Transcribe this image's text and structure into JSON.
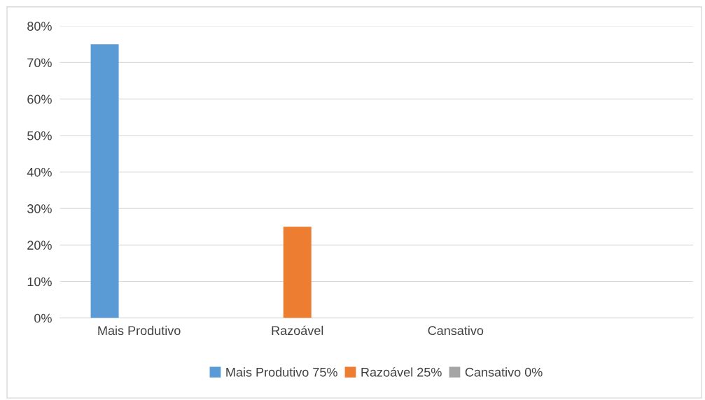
{
  "chart_data": {
    "type": "bar",
    "categories": [
      "Mais Produtivo",
      "Razoável",
      "Cansativo",
      null
    ],
    "series": [
      {
        "name": "Mais Produtivo 75%",
        "color": "#5b9bd5",
        "values": [
          75,
          null,
          null,
          null
        ]
      },
      {
        "name": "Razoável 25%",
        "color": "#ed7d31",
        "values": [
          null,
          25,
          null,
          null
        ]
      },
      {
        "name": "Cansativo 0%",
        "color": "#a5a5a5",
        "values": [
          null,
          null,
          0,
          null
        ]
      }
    ],
    "ylim": [
      0,
      80
    ],
    "yticks": [
      {
        "value": 0,
        "label": "0%"
      },
      {
        "value": 10,
        "label": "10%"
      },
      {
        "value": 20,
        "label": "20%"
      },
      {
        "value": 30,
        "label": "30%"
      },
      {
        "value": 40,
        "label": "40%"
      },
      {
        "value": 50,
        "label": "50%"
      },
      {
        "value": 60,
        "label": "60%"
      },
      {
        "value": 70,
        "label": "70%"
      },
      {
        "value": 80,
        "label": "80%"
      }
    ],
    "grid": "y",
    "legend": "bottom"
  }
}
